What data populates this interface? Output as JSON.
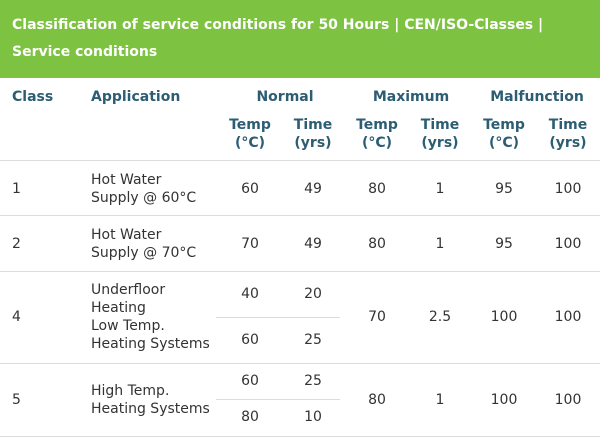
{
  "title": "Classification of service conditions for 50 Hours  |  CEN/ISO-Classes  |  Service conditions",
  "headers": {
    "class": "Class",
    "application": "Application",
    "normal": "Normal",
    "maximum": "Maximum",
    "malfunction": "Malfunction",
    "temp_line1": "Temp",
    "temp_line2": "(°C)",
    "time_line1": "Time",
    "time_line2": "(yrs)"
  },
  "rows": [
    {
      "class": "1",
      "application": [
        "Hot Water",
        "Supply @ 60°C"
      ],
      "normal": [
        {
          "temp": "60",
          "time": "49"
        }
      ],
      "maximum": {
        "temp": "80",
        "time": "1"
      },
      "malfunction": {
        "temp": "95",
        "time": "100"
      }
    },
    {
      "class": "2",
      "application": [
        "Hot Water",
        "Supply @ 70°C"
      ],
      "normal": [
        {
          "temp": "70",
          "time": "49"
        }
      ],
      "maximum": {
        "temp": "80",
        "time": "1"
      },
      "malfunction": {
        "temp": "95",
        "time": "100"
      }
    },
    {
      "class": "4",
      "application": [
        "Underfloor",
        "Heating",
        "Low Temp.",
        "Heating Systems"
      ],
      "normal": [
        {
          "temp": "40",
          "time": "20"
        },
        {
          "temp": "60",
          "time": "25"
        }
      ],
      "maximum": {
        "temp": "70",
        "time": "2.5"
      },
      "malfunction": {
        "temp": "100",
        "time": "100"
      }
    },
    {
      "class": "5",
      "application": [
        "High Temp.",
        "Heating Systems"
      ],
      "normal": [
        {
          "temp": "60",
          "time": "25"
        },
        {
          "temp": "80",
          "time": "10"
        }
      ],
      "maximum": {
        "temp": "80",
        "time": "1"
      },
      "malfunction": {
        "temp": "100",
        "time": "100"
      }
    }
  ],
  "colors": {
    "banner": "#7dc241",
    "header_text": "#2c5d73",
    "body_text": "#333333",
    "divider": "#dcdcdc"
  }
}
